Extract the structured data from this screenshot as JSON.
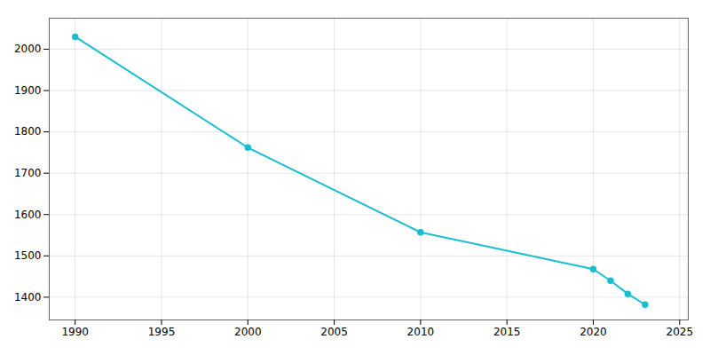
{
  "chart_data": {
    "type": "line",
    "x": [
      1990,
      2000,
      2010,
      2020,
      2021,
      2022,
      2023
    ],
    "values": [
      2030,
      1762,
      1557,
      1468,
      1440,
      1408,
      1382
    ],
    "color": "#17becf",
    "marker": "circle",
    "xlim": [
      1988.5,
      2025.5
    ],
    "ylim": [
      1345,
      2075
    ],
    "xticks": [
      1990,
      1995,
      2000,
      2005,
      2010,
      2015,
      2020,
      2025
    ],
    "yticks": [
      1400,
      1500,
      1600,
      1700,
      1800,
      1900,
      2000
    ],
    "grid": true
  }
}
